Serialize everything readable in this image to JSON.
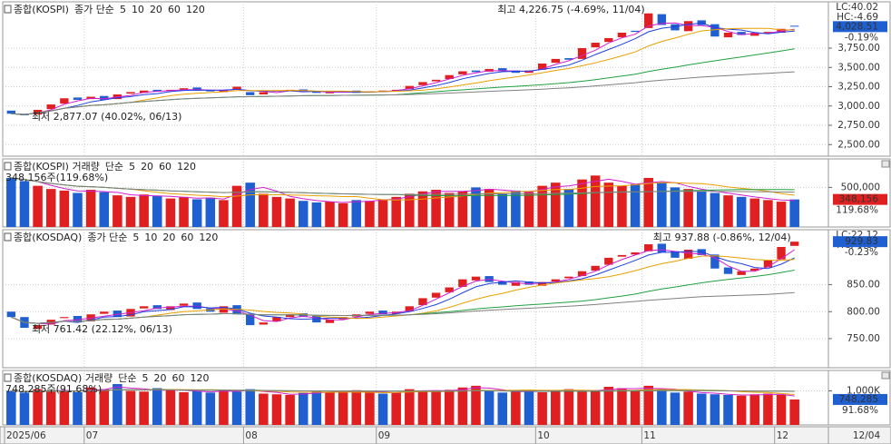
{
  "chart_data": [
    {
      "type": "candlestick",
      "title": "종합(KOSPI)",
      "indicator": "종가 단순",
      "moving_averages": [
        {
          "period": 5,
          "color": "#d020d0"
        },
        {
          "period": 10,
          "color": "#2040e0"
        },
        {
          "period": 20,
          "color": "#e8a000"
        },
        {
          "period": 60,
          "color": "#20a040"
        },
        {
          "period": 120,
          "color": "#808080"
        }
      ],
      "open": [
        2940,
        2900,
        2890,
        2960,
        3030,
        3110,
        3090,
        3130,
        3090,
        3160,
        3170,
        3210,
        3195,
        3215,
        3240,
        3210,
        3180,
        3215,
        3180,
        3150,
        3190,
        3200,
        3215,
        3195,
        3165,
        3185,
        3200,
        3175,
        3185,
        3205,
        3220,
        3270,
        3320,
        3350,
        3410,
        3460,
        3445,
        3490,
        3460,
        3430,
        3470,
        3560,
        3620,
        3610,
        3760,
        3830,
        3890,
        3975,
        4010,
        4190,
        4060,
        3970,
        4110,
        4060,
        3890,
        3960,
        3910,
        3945,
        3950,
        4040
      ],
      "close": [
        2900,
        2880,
        2950,
        3020,
        3100,
        3080,
        3120,
        3080,
        3150,
        3180,
        3200,
        3190,
        3210,
        3230,
        3200,
        3190,
        3210,
        3250,
        3140,
        3180,
        3200,
        3210,
        3190,
        3170,
        3180,
        3190,
        3170,
        3190,
        3200,
        3210,
        3260,
        3310,
        3340,
        3400,
        3450,
        3440,
        3480,
        3450,
        3430,
        3460,
        3550,
        3610,
        3600,
        3750,
        3820,
        3880,
        3950,
        3960,
        4200,
        4050,
        3980,
        4100,
        4050,
        3900,
        3950,
        3920,
        3950,
        3960,
        4000,
        4028.51
      ],
      "up_color": "#e02020",
      "down_color": "#1f5fd0",
      "marker_color": "#1f5fd0",
      "annotations": [
        "최고 4,226.75 (-4.69%, 11/04)",
        "최저 2,877.07 (40.02%, 06/13)"
      ],
      "ylim": [
        2350,
        4350
      ],
      "yticks": [
        {
          "value": 3750,
          "label": "3,750.00"
        },
        {
          "value": 3500,
          "label": "3,500.00"
        },
        {
          "value": 3250,
          "label": "3,250.00"
        },
        {
          "value": 3000,
          "label": "3,000.00"
        },
        {
          "value": 2750,
          "label": "2,750.00"
        },
        {
          "value": 2500,
          "label": "2,500.00"
        }
      ],
      "grid": true,
      "side_labels": [
        "LC:40.02",
        "HC:-4.69",
        "4,028.51",
        "-0.19%"
      ]
    },
    {
      "type": "bar",
      "title": "종합(KOSPI) 거래량",
      "indicator": "단순",
      "moving_averages": [
        {
          "period": 5,
          "color": "#d020d0"
        },
        {
          "period": 20,
          "color": "#e8a000"
        },
        {
          "period": 60,
          "color": "#20a040"
        },
        {
          "period": 120,
          "color": "#808080"
        }
      ],
      "values": [
        620000,
        580000,
        520000,
        480000,
        460000,
        430000,
        470000,
        440000,
        400000,
        380000,
        410000,
        390000,
        360000,
        380000,
        350000,
        370000,
        340000,
        520000,
        560000,
        420000,
        380000,
        360000,
        330000,
        310000,
        320000,
        300000,
        340000,
        330000,
        350000,
        380000,
        420000,
        450000,
        470000,
        430000,
        450000,
        500000,
        480000,
        420000,
        460000,
        440000,
        520000,
        560000,
        480000,
        600000,
        650000,
        560000,
        520000,
        540000,
        620000,
        560000,
        500000,
        480000,
        450000,
        430000,
        400000,
        380000,
        360000,
        340000,
        320000,
        348156
      ],
      "up_color": "#e02020",
      "down_color": "#1f5fd0",
      "marker_color": "#e02020",
      "info": "348,156주(119.68%)",
      "ylim": [
        0,
        860000
      ],
      "yticks": [
        {
          "value": 500000,
          "label": "500,000"
        }
      ],
      "grid": true,
      "side_labels": [
        "348,156",
        "119.68%"
      ]
    },
    {
      "type": "candlestick",
      "title": "종합(KOSDAQ)",
      "indicator": "종가 단순",
      "moving_averages": [
        {
          "period": 5,
          "color": "#d020d0"
        },
        {
          "period": 10,
          "color": "#2040e0"
        },
        {
          "period": 20,
          "color": "#e8a000"
        },
        {
          "period": 60,
          "color": "#20a040"
        },
        {
          "period": 120,
          "color": "#808080"
        }
      ],
      "open": [
        800,
        790,
        768,
        776,
        788,
        792,
        782,
        796,
        802,
        791,
        806,
        812,
        803,
        811,
        817,
        806,
        798,
        812,
        796,
        776,
        782,
        790,
        797,
        792,
        779,
        786,
        791,
        796,
        802,
        796,
        801,
        812,
        826,
        836,
        846,
        858,
        866,
        856,
        848,
        856,
        848,
        856,
        862,
        866,
        876,
        887,
        902,
        906,
        912,
        926,
        912,
        898,
        916,
        906,
        882,
        868,
        876,
        882,
        897,
        922
      ],
      "close": [
        790,
        770,
        775,
        785,
        790,
        780,
        795,
        800,
        790,
        805,
        810,
        805,
        810,
        815,
        805,
        800,
        810,
        795,
        775,
        780,
        790,
        795,
        790,
        780,
        785,
        790,
        795,
        800,
        795,
        800,
        810,
        825,
        835,
        845,
        860,
        865,
        855,
        850,
        855,
        850,
        855,
        860,
        865,
        875,
        885,
        900,
        905,
        910,
        925,
        910,
        900,
        915,
        905,
        880,
        870,
        875,
        880,
        895,
        920,
        929.83
      ],
      "up_color": "#e02020",
      "down_color": "#1f5fd0",
      "marker_color": "#1f5fd0",
      "annotations": [
        "최고 937.88 (-0.86%, 12/04)",
        "최저 761.42 (22.12%, 06/13)"
      ],
      "ylim": [
        696,
        952
      ],
      "yticks": [
        {
          "value": 850,
          "label": "850.00"
        },
        {
          "value": 800,
          "label": "800.00"
        },
        {
          "value": 750,
          "label": "750.00"
        }
      ],
      "grid": true,
      "side_labels": [
        "LC:22.12",
        "HC:-0.86",
        "929.83",
        "-0.23%"
      ]
    },
    {
      "type": "bar",
      "title": "종합(KOSDAQ) 거래량",
      "indicator": "단순",
      "moving_averages": [
        {
          "period": 5,
          "color": "#d020d0"
        },
        {
          "period": 20,
          "color": "#e8a000"
        },
        {
          "period": 60,
          "color": "#20a040"
        },
        {
          "period": 120,
          "color": "#808080"
        }
      ],
      "values": [
        1000000,
        950000,
        1050000,
        980000,
        1020000,
        960000,
        1100000,
        1050000,
        1200000,
        1000000,
        980000,
        1080000,
        1020000,
        960000,
        1000000,
        950000,
        1030000,
        980000,
        1050000,
        920000,
        900000,
        880000,
        940000,
        1000000,
        960000,
        980000,
        1020000,
        950000,
        920000,
        960000,
        1050000,
        1000000,
        980000,
        1030000,
        1100000,
        1150000,
        1000000,
        950000,
        980000,
        1020000,
        960000,
        1000000,
        1050000,
        980000,
        1000000,
        1120000,
        1080000,
        1000000,
        1150000,
        1050000,
        950000,
        980000,
        920000,
        900000,
        880000,
        860000,
        900000,
        920000,
        880000,
        748285
      ],
      "up_color": "#e02020",
      "down_color": "#1f5fd0",
      "marker_color": "#1f5fd0",
      "info": "748,285주(91.68%)",
      "ylim": [
        0,
        1600000
      ],
      "yticks": [
        {
          "value": 1000000,
          "label": "1,000K"
        }
      ],
      "grid": true,
      "side_labels": [
        "748,285",
        "91.68%"
      ],
      "categories": [
        "2025/06",
        null,
        null,
        null,
        null,
        null,
        "07",
        null,
        null,
        null,
        null,
        null,
        null,
        null,
        null,
        null,
        null,
        null,
        "08",
        null,
        null,
        null,
        null,
        null,
        null,
        null,
        null,
        null,
        "09",
        null,
        null,
        null,
        null,
        null,
        null,
        null,
        null,
        null,
        null,
        null,
        "10",
        null,
        null,
        null,
        null,
        null,
        null,
        null,
        "11",
        null,
        null,
        null,
        null,
        null,
        null,
        null,
        null,
        null,
        "12",
        null
      ],
      "x_end_label": "12/04"
    }
  ]
}
